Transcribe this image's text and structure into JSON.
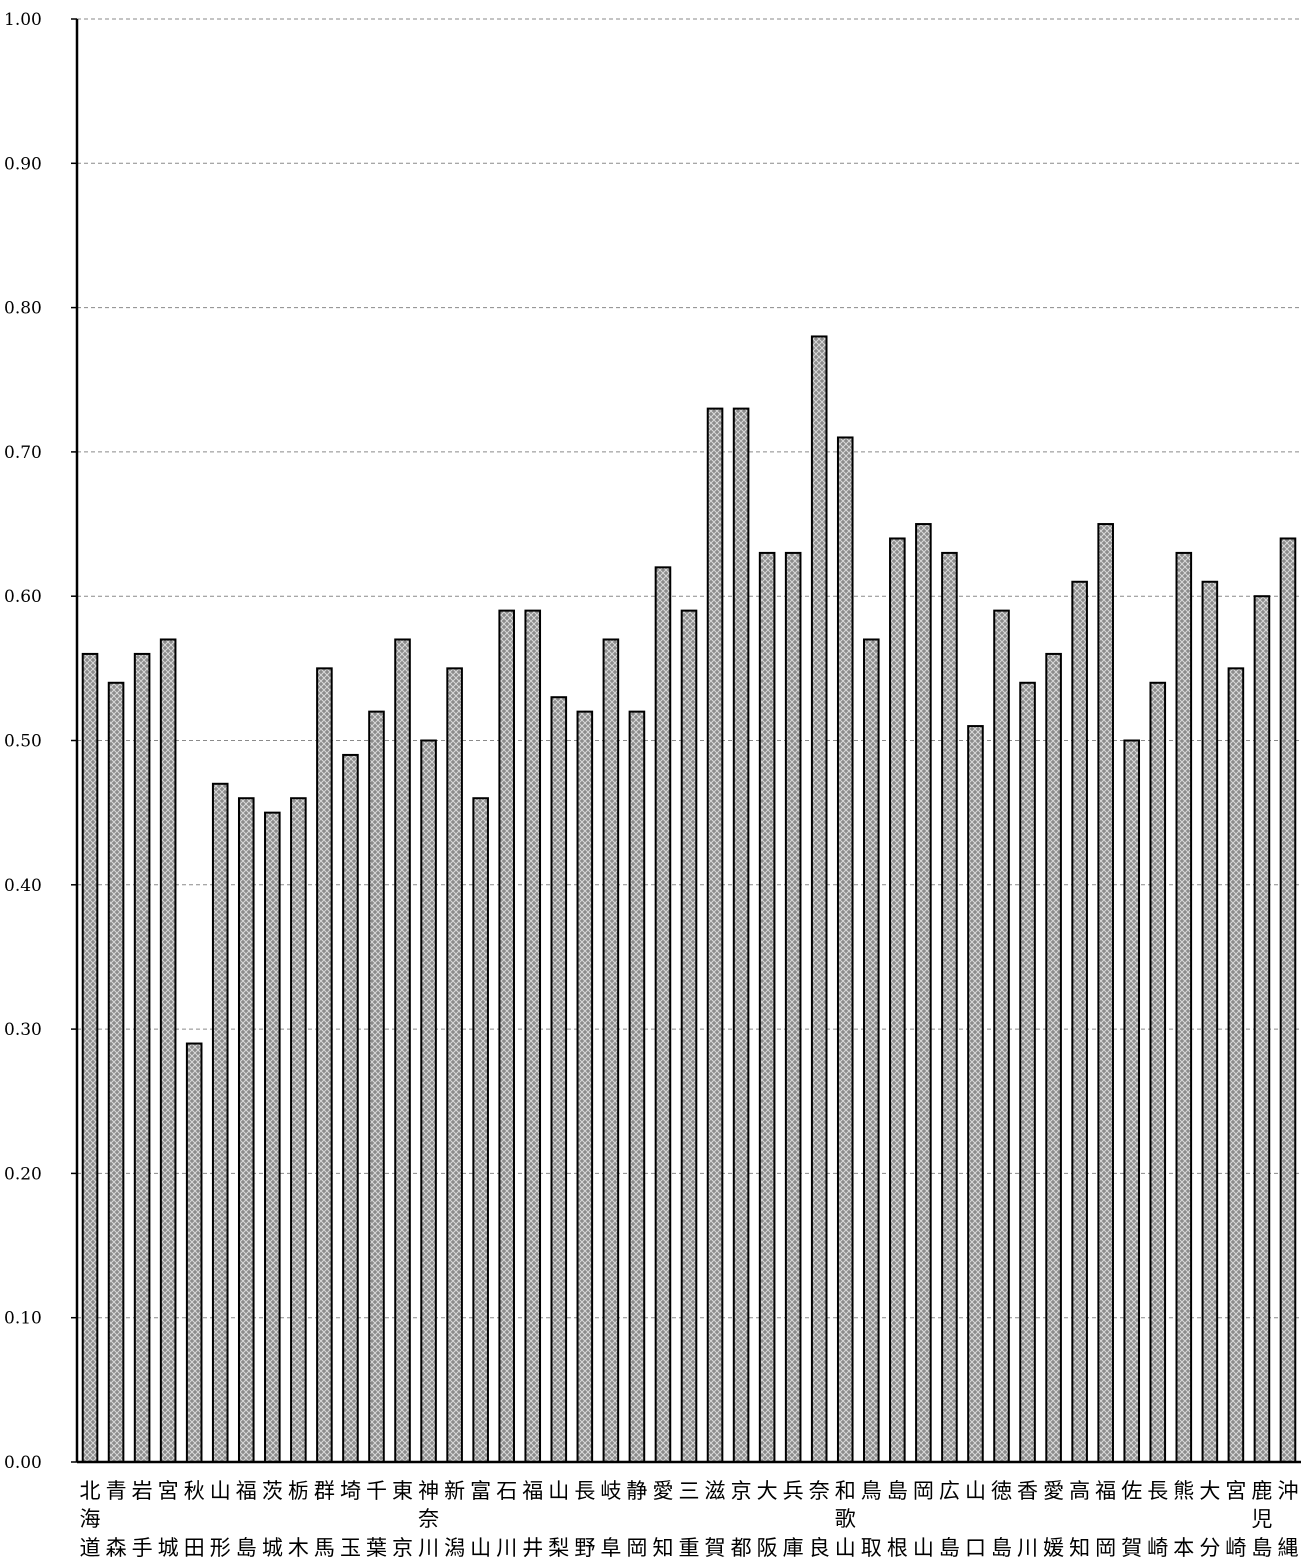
{
  "chart_data": {
    "type": "bar",
    "title": "",
    "xlabel": "",
    "ylabel": "",
    "ylim": [
      0,
      1.0
    ],
    "yticks": [
      "0.00",
      "0.10",
      "0.20",
      "0.30",
      "0.40",
      "0.50",
      "0.60",
      "0.70",
      "0.80",
      "0.90",
      "1.00"
    ],
    "grid": "horizontal dashed",
    "bar_fill": "#8c8c8c",
    "bar_pattern": "crosshatch",
    "categories": [
      "北海道",
      "青森",
      "岩手",
      "宮城",
      "秋田",
      "山形",
      "福島",
      "茨城",
      "栃木",
      "群馬",
      "埼玉",
      "千葉",
      "東京",
      "神奈川",
      "新潟",
      "富山",
      "石川",
      "福井",
      "山梨",
      "長野",
      "岐阜",
      "静岡",
      "愛知",
      "三重",
      "滋賀",
      "京都",
      "大阪",
      "兵庫",
      "奈良",
      "和歌山",
      "鳥取",
      "島根",
      "岡山",
      "広島",
      "山口",
      "徳島",
      "香川",
      "愛媛",
      "高知",
      "福岡",
      "佐賀",
      "長崎",
      "熊本",
      "大分",
      "宮崎",
      "鹿児島",
      "沖縄"
    ],
    "values": [
      0.56,
      0.54,
      0.56,
      0.57,
      0.29,
      0.47,
      0.46,
      0.45,
      0.46,
      0.55,
      0.49,
      0.52,
      0.57,
      0.5,
      0.55,
      0.46,
      0.59,
      0.59,
      0.53,
      0.52,
      0.57,
      0.52,
      0.62,
      0.59,
      0.73,
      0.73,
      0.63,
      0.63,
      0.78,
      0.71,
      0.57,
      0.64,
      0.65,
      0.63,
      0.51,
      0.59,
      0.54,
      0.56,
      0.61,
      0.65,
      0.5,
      0.54,
      0.63,
      0.61,
      0.55,
      0.6,
      0.64
    ]
  }
}
